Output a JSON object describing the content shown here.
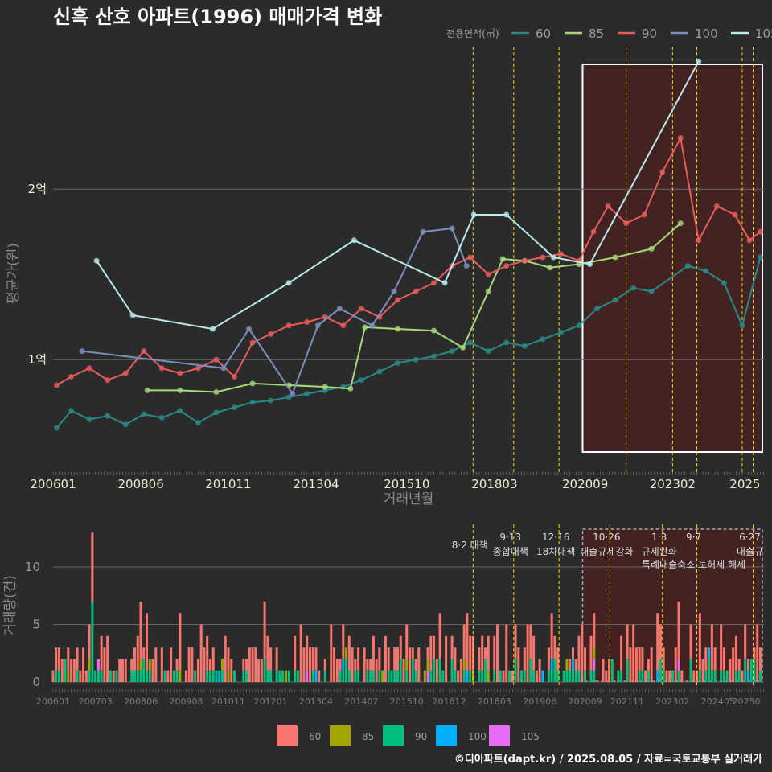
{
  "title": "신흑 산호 아파트(1996) 매매가격 변화",
  "footer": "©디아파트(dapt.kr) / 2025.08.05 / 자료=국토교통부 실거래가",
  "colors": {
    "background": "#2b2b2b",
    "line_60": "#2a8a8a",
    "line_85": "#a6db7a",
    "line_90": "#e85c5c",
    "line_100": "#7c90c0",
    "line_105": "#b5ecec",
    "bar_60": "#f8766d",
    "bar_85": "#a3a500",
    "bar_90": "#00bf7d",
    "bar_100": "#00b0f6",
    "bar_105": "#e76bf3",
    "policy_line": "#ffd700",
    "highlight_fill": "#4a2020"
  },
  "chart_data": [
    {
      "type": "line",
      "xlabel": "거래년월",
      "ylabel": "평균가(원)",
      "legend_title": "전용면적(㎡)",
      "legend_position": "top-right",
      "ylim": [
        0.35,
        2.85
      ],
      "yticks": [
        {
          "v": 1,
          "label": "1억"
        },
        {
          "v": 2,
          "label": "2억"
        }
      ],
      "xlim": [
        2006.0,
        2025.6
      ],
      "xticks": [
        {
          "v": 2006.0,
          "label": "200601"
        },
        {
          "v": 2008.42,
          "label": "200806"
        },
        {
          "v": 2010.83,
          "label": "201011"
        },
        {
          "v": 2013.25,
          "label": "201304"
        },
        {
          "v": 2015.75,
          "label": "201510"
        },
        {
          "v": 2018.17,
          "label": "201803"
        },
        {
          "v": 2020.67,
          "label": "202009"
        },
        {
          "v": 2023.08,
          "label": "202302"
        },
        {
          "v": 2025.5,
          "label": "2025"
        }
      ],
      "grid": true,
      "highlight_range": [
        2020.6,
        2025.6
      ],
      "policy_dates": [
        2017.58,
        2018.7,
        2019.95,
        2021.8,
        2023.08,
        2023.75,
        2025.0,
        2025.3
      ],
      "series": [
        {
          "name": "60",
          "x": [
            2006.1,
            2006.5,
            2007.0,
            2007.5,
            2008.0,
            2008.5,
            2009.0,
            2009.5,
            2010.0,
            2010.5,
            2011.0,
            2011.5,
            2012.0,
            2012.5,
            2013.0,
            2013.5,
            2014.0,
            2014.5,
            2015.0,
            2015.5,
            2016.0,
            2016.5,
            2017.0,
            2017.5,
            2018.0,
            2018.5,
            2019.0,
            2019.5,
            2020.0,
            2020.5,
            2021.0,
            2021.5,
            2022.0,
            2022.5,
            2023.5,
            2024.0,
            2024.5,
            2025.0,
            2025.5
          ],
          "y": [
            0.6,
            0.7,
            0.65,
            0.67,
            0.62,
            0.68,
            0.66,
            0.7,
            0.63,
            0.69,
            0.72,
            0.75,
            0.76,
            0.78,
            0.8,
            0.82,
            0.84,
            0.88,
            0.93,
            0.98,
            1.0,
            1.02,
            1.05,
            1.1,
            1.05,
            1.1,
            1.08,
            1.12,
            1.16,
            1.2,
            1.3,
            1.35,
            1.42,
            1.4,
            1.55,
            1.52,
            1.45,
            1.2,
            1.6
          ]
        },
        {
          "name": "85",
          "x": [
            2008.6,
            2009.5,
            2010.5,
            2011.5,
            2012.5,
            2013.5,
            2014.2,
            2014.6,
            2015.5,
            2016.5,
            2017.3,
            2018.0,
            2018.4,
            2019.0,
            2019.7,
            2020.5,
            2021.5,
            2022.5,
            2023.3
          ],
          "y": [
            0.82,
            0.82,
            0.81,
            0.86,
            0.85,
            0.84,
            0.83,
            1.19,
            1.18,
            1.17,
            1.07,
            1.4,
            1.59,
            1.58,
            1.54,
            1.56,
            1.6,
            1.65,
            1.8
          ]
        },
        {
          "name": "90",
          "x": [
            2006.1,
            2006.5,
            2007.0,
            2007.5,
            2008.0,
            2008.5,
            2009.0,
            2009.5,
            2010.0,
            2010.5,
            2011.0,
            2011.5,
            2012.0,
            2012.5,
            2013.0,
            2013.5,
            2014.0,
            2014.5,
            2015.0,
            2015.5,
            2016.0,
            2016.5,
            2017.0,
            2017.5,
            2018.0,
            2018.5,
            2019.0,
            2019.5,
            2020.0,
            2020.5,
            2020.9,
            2021.3,
            2021.8,
            2022.3,
            2022.8,
            2023.3,
            2023.8,
            2024.3,
            2024.8,
            2025.2,
            2025.5
          ],
          "y": [
            0.85,
            0.9,
            0.95,
            0.88,
            0.92,
            1.05,
            0.95,
            0.92,
            0.95,
            1.0,
            0.9,
            1.1,
            1.15,
            1.2,
            1.22,
            1.25,
            1.2,
            1.3,
            1.25,
            1.35,
            1.4,
            1.45,
            1.55,
            1.6,
            1.5,
            1.55,
            1.58,
            1.6,
            1.62,
            1.58,
            1.75,
            1.9,
            1.8,
            1.85,
            2.1,
            2.3,
            1.7,
            1.9,
            1.85,
            1.7,
            1.75
          ]
        },
        {
          "name": "100",
          "x": [
            2006.8,
            2010.7,
            2011.4,
            2012.6,
            2013.3,
            2013.9,
            2014.8,
            2015.4,
            2016.2,
            2017.0,
            2017.4
          ],
          "y": [
            1.05,
            0.95,
            1.18,
            0.8,
            1.2,
            1.3,
            1.2,
            1.4,
            1.75,
            1.77,
            1.55
          ]
        },
        {
          "name": "105",
          "x": [
            2007.2,
            2008.2,
            2010.4,
            2012.5,
            2014.3,
            2016.8,
            2017.6,
            2018.5,
            2019.8,
            2020.8,
            2023.8
          ],
          "y": [
            1.58,
            1.26,
            1.18,
            1.45,
            1.7,
            1.45,
            1.85,
            1.85,
            1.6,
            1.56,
            2.75
          ]
        }
      ]
    },
    {
      "type": "bar",
      "stacked": true,
      "ylabel": "거래량(건)",
      "ylim": [
        0,
        13.5
      ],
      "yticks": [
        0,
        5,
        10
      ],
      "xticks": [
        {
          "v": 2006.0,
          "label": "200601"
        },
        {
          "v": 2007.17,
          "label": "200703"
        },
        {
          "v": 2008.42,
          "label": "200806"
        },
        {
          "v": 2009.67,
          "label": "200908"
        },
        {
          "v": 2010.83,
          "label": "201011"
        },
        {
          "v": 2012.0,
          "label": "201201"
        },
        {
          "v": 2013.25,
          "label": "201304"
        },
        {
          "v": 2014.5,
          "label": "201407"
        },
        {
          "v": 2015.75,
          "label": "201510"
        },
        {
          "v": 2016.92,
          "label": "201612"
        },
        {
          "v": 2018.17,
          "label": "201803"
        },
        {
          "v": 2019.42,
          "label": "201906"
        },
        {
          "v": 2020.67,
          "label": "202009"
        },
        {
          "v": 2021.83,
          "label": "202111"
        },
        {
          "v": 2023.08,
          "label": "202302"
        },
        {
          "v": 2024.33,
          "label": "202405"
        },
        {
          "v": 2025.5,
          "label": "20250"
        }
      ],
      "legend_position": "bottom",
      "series": [
        {
          "name": "60",
          "peak": {
            "x": 2007.1,
            "y": 13
          }
        },
        {
          "name": "85"
        },
        {
          "name": "90",
          "peak": {
            "x": 2007.1,
            "y": 7
          }
        },
        {
          "name": "100"
        },
        {
          "name": "105"
        }
      ],
      "policies": [
        {
          "date": "8·2 대책",
          "x": 2017.58
        },
        {
          "date": "9·13",
          "text": "종합대책",
          "x": 2018.7
        },
        {
          "date": "12·16",
          "text": "18차대책",
          "x": 2019.95
        },
        {
          "date": "10·26",
          "text": "대출규제강화",
          "x": 2021.35
        },
        {
          "date": "1·3",
          "text": "규제완화",
          "x": 2022.8
        },
        {
          "date": "9·7",
          "text": "특례대출축소 토허제 해제",
          "x": 2023.75
        },
        {
          "date": "6·27",
          "text": "대출규",
          "x": 2025.3
        }
      ]
    }
  ]
}
